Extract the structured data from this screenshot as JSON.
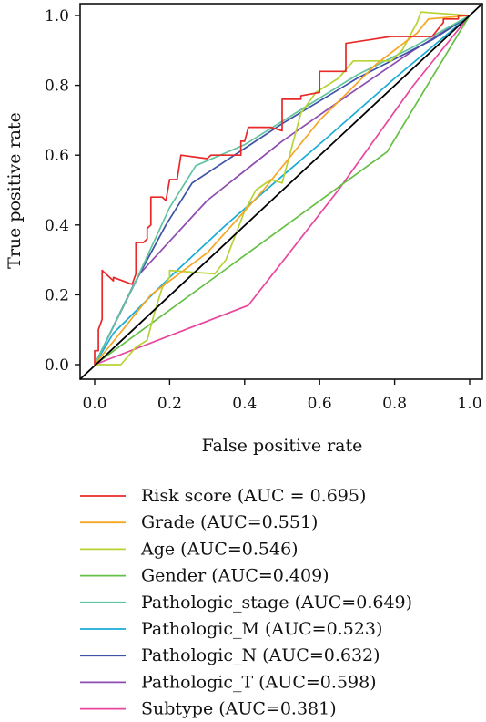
{
  "chart_data": {
    "type": "line",
    "title": "",
    "xlabel": "False positive rate",
    "ylabel": "True positive rate",
    "xlim": [
      0,
      1
    ],
    "ylim": [
      0,
      1
    ],
    "xticks": [
      "0.0",
      "0.2",
      "0.4",
      "0.6",
      "0.8",
      "1.0"
    ],
    "yticks": [
      "0.0",
      "0.2",
      "0.4",
      "0.6",
      "0.8",
      "1.0"
    ],
    "grid": false,
    "legend_position": "bottom",
    "reference_line": {
      "color": "#000000",
      "points": [
        [
          0,
          0
        ],
        [
          1,
          1
        ]
      ]
    },
    "series": [
      {
        "name": "Risk score (AUC = 0.695)",
        "color": "#e8292a",
        "points": [
          [
            0,
            0
          ],
          [
            0,
            0.04
          ],
          [
            0.01,
            0.04
          ],
          [
            0.01,
            0.1
          ],
          [
            0.02,
            0.13
          ],
          [
            0.02,
            0.27
          ],
          [
            0.04,
            0.25
          ],
          [
            0.05,
            0.24
          ],
          [
            0.05,
            0.25
          ],
          [
            0.1,
            0.23
          ],
          [
            0.11,
            0.26
          ],
          [
            0.11,
            0.35
          ],
          [
            0.13,
            0.35
          ],
          [
            0.14,
            0.36
          ],
          [
            0.14,
            0.39
          ],
          [
            0.15,
            0.4
          ],
          [
            0.15,
            0.48
          ],
          [
            0.18,
            0.48
          ],
          [
            0.19,
            0.47
          ],
          [
            0.2,
            0.53
          ],
          [
            0.22,
            0.53
          ],
          [
            0.23,
            0.6
          ],
          [
            0.3,
            0.59
          ],
          [
            0.31,
            0.6
          ],
          [
            0.38,
            0.6
          ],
          [
            0.39,
            0.6
          ],
          [
            0.39,
            0.64
          ],
          [
            0.4,
            0.64
          ],
          [
            0.41,
            0.68
          ],
          [
            0.47,
            0.68
          ],
          [
            0.5,
            0.67
          ],
          [
            0.5,
            0.76
          ],
          [
            0.55,
            0.76
          ],
          [
            0.55,
            0.77
          ],
          [
            0.6,
            0.78
          ],
          [
            0.6,
            0.84
          ],
          [
            0.67,
            0.84
          ],
          [
            0.67,
            0.92
          ],
          [
            0.73,
            0.93
          ],
          [
            0.79,
            0.94
          ],
          [
            0.9,
            0.94
          ],
          [
            0.93,
            0.98
          ],
          [
            0.93,
            0.99
          ],
          [
            0.97,
            0.99
          ],
          [
            0.97,
            1.0
          ],
          [
            1,
            1
          ]
        ]
      },
      {
        "name": "Grade (AUC=0.551)",
        "color": "#f5a623",
        "points": [
          [
            0,
            0
          ],
          [
            0.15,
            0.2
          ],
          [
            0.3,
            0.32
          ],
          [
            0.45,
            0.5
          ],
          [
            0.6,
            0.7
          ],
          [
            0.75,
            0.86
          ],
          [
            0.86,
            0.95
          ],
          [
            0.89,
            0.99
          ],
          [
            1,
            1
          ]
        ]
      },
      {
        "name": "Age (AUC=0.546)",
        "color": "#b7d333",
        "points": [
          [
            0,
            0
          ],
          [
            0.07,
            0
          ],
          [
            0.11,
            0.05
          ],
          [
            0.14,
            0.07
          ],
          [
            0.16,
            0.15
          ],
          [
            0.18,
            0.22
          ],
          [
            0.2,
            0.25
          ],
          [
            0.2,
            0.27
          ],
          [
            0.32,
            0.26
          ],
          [
            0.35,
            0.3
          ],
          [
            0.4,
            0.44
          ],
          [
            0.43,
            0.5
          ],
          [
            0.47,
            0.53
          ],
          [
            0.5,
            0.52
          ],
          [
            0.52,
            0.6
          ],
          [
            0.55,
            0.72
          ],
          [
            0.59,
            0.78
          ],
          [
            0.62,
            0.8
          ],
          [
            0.65,
            0.82
          ],
          [
            0.69,
            0.87
          ],
          [
            0.79,
            0.87
          ],
          [
            0.82,
            0.9
          ],
          [
            0.86,
            0.98
          ],
          [
            0.87,
            1.01
          ],
          [
            1,
            1
          ]
        ]
      },
      {
        "name": "Gender (AUC=0.409)",
        "color": "#64c044",
        "points": [
          [
            0,
            0
          ],
          [
            0.78,
            0.61
          ],
          [
            1,
            1
          ]
        ]
      },
      {
        "name": "Pathologic_stage (AUC=0.649)",
        "color": "#5fc4a0",
        "points": [
          [
            0,
            0
          ],
          [
            0.11,
            0.24
          ],
          [
            0.2,
            0.45
          ],
          [
            0.27,
            0.57
          ],
          [
            0.4,
            0.63
          ],
          [
            0.55,
            0.73
          ],
          [
            0.7,
            0.83
          ],
          [
            0.85,
            0.91
          ],
          [
            1,
            1
          ]
        ]
      },
      {
        "name": "Pathologic_M (AUC=0.523)",
        "color": "#1aabd7",
        "points": [
          [
            0,
            0
          ],
          [
            0.05,
            0.09
          ],
          [
            0.2,
            0.25
          ],
          [
            0.35,
            0.4
          ],
          [
            0.5,
            0.54
          ],
          [
            0.62,
            0.65
          ],
          [
            0.8,
            0.82
          ],
          [
            1,
            1
          ]
        ]
      },
      {
        "name": "Pathologic_N (AUC=0.632)",
        "color": "#3d51a5",
        "points": [
          [
            0,
            0
          ],
          [
            0.1,
            0.22
          ],
          [
            0.19,
            0.4
          ],
          [
            0.26,
            0.52
          ],
          [
            0.5,
            0.69
          ],
          [
            0.7,
            0.82
          ],
          [
            0.9,
            0.93
          ],
          [
            1,
            1
          ]
        ]
      },
      {
        "name": "Pathologic_T (AUC=0.598)",
        "color": "#8e4bb0",
        "points": [
          [
            0,
            0
          ],
          [
            0.12,
            0.26
          ],
          [
            0.3,
            0.47
          ],
          [
            0.5,
            0.64
          ],
          [
            0.7,
            0.79
          ],
          [
            0.85,
            0.9
          ],
          [
            1,
            1
          ]
        ]
      },
      {
        "name": "Subtype (AUC=0.381)",
        "color": "#e8459c",
        "points": [
          [
            0,
            0
          ],
          [
            0.41,
            0.17
          ],
          [
            0.65,
            0.5
          ],
          [
            0.85,
            0.8
          ],
          [
            1,
            1
          ]
        ]
      }
    ]
  }
}
